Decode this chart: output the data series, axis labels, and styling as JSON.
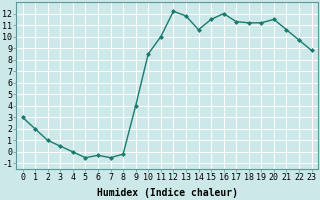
{
  "x": [
    0,
    1,
    2,
    3,
    4,
    5,
    6,
    7,
    8,
    9,
    10,
    11,
    12,
    13,
    14,
    15,
    16,
    17,
    18,
    19,
    20,
    21,
    22,
    23
  ],
  "y": [
    3,
    2,
    1,
    0.5,
    0,
    -0.5,
    -0.3,
    -0.5,
    -0.2,
    4,
    8.5,
    10,
    12.2,
    11.8,
    10.6,
    11.5,
    12,
    11.3,
    11.2,
    11.2,
    11.5,
    10.6,
    9.7,
    8.8
  ],
  "line_color": "#1a7a6e",
  "marker": "D",
  "marker_size": 2,
  "bg_color": "#cce8e8",
  "grid_color": "#b0d0d0",
  "xlabel": "Humidex (Indice chaleur)",
  "xlim": [
    -0.5,
    23.5
  ],
  "ylim": [
    -1.5,
    13.0
  ],
  "xtick_labels": [
    "0",
    "1",
    "2",
    "3",
    "4",
    "5",
    "6",
    "7",
    "8",
    "9",
    "10",
    "11",
    "12",
    "13",
    "14",
    "15",
    "16",
    "17",
    "18",
    "19",
    "20",
    "21",
    "22",
    "23"
  ],
  "ytick_values": [
    -1,
    0,
    1,
    2,
    3,
    4,
    5,
    6,
    7,
    8,
    9,
    10,
    11,
    12
  ],
  "xlabel_fontsize": 7,
  "tick_fontsize": 6,
  "linewidth": 1.0
}
